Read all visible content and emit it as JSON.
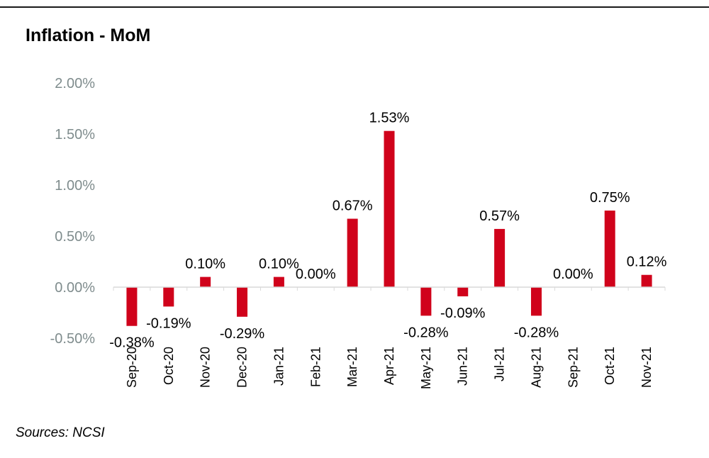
{
  "header": {
    "title": "Inflation - MoM"
  },
  "footer": {
    "source": "Sources: NCSI"
  },
  "chart_data": {
    "type": "bar",
    "title": "Inflation - MoM",
    "xlabel": "",
    "ylabel": "",
    "categories": [
      "Sep-20",
      "Oct-20",
      "Nov-20",
      "Dec-20",
      "Jan-21",
      "Feb-21",
      "Mar-21",
      "Apr-21",
      "May-21",
      "Jun-21",
      "Jul-21",
      "Aug-21",
      "Sep-21",
      "Oct-21",
      "Nov-21"
    ],
    "values": [
      -0.38,
      -0.19,
      0.1,
      -0.29,
      0.1,
      0.0,
      0.67,
      1.53,
      -0.28,
      -0.09,
      0.57,
      -0.28,
      0.0,
      0.75,
      0.12
    ],
    "data_labels": [
      "-0.38%",
      "-0.19%",
      "0.10%",
      "-0.29%",
      "0.10%",
      "0.00%",
      "0.67%",
      "1.53%",
      "-0.28%",
      "-0.09%",
      "0.57%",
      "-0.28%",
      "0.00%",
      "0.75%",
      "0.12%"
    ],
    "ylim": [
      -0.5,
      2.0
    ],
    "y_ticks": [
      "-0.50%",
      "0.00%",
      "0.50%",
      "1.00%",
      "1.50%",
      "2.00%"
    ],
    "y_tick_values": [
      -0.5,
      0.0,
      0.5,
      1.0,
      1.5,
      2.0
    ],
    "bar_color": "#d0021b",
    "grid": false,
    "legend": "none"
  }
}
